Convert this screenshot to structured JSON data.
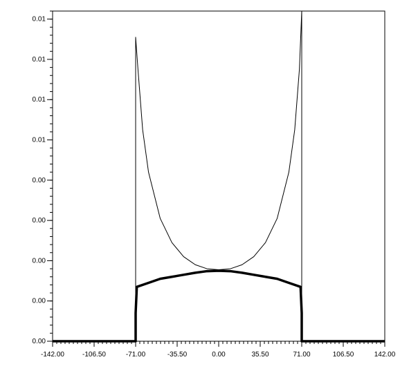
{
  "chart_data": {
    "type": "line",
    "title": "",
    "xlabel": "",
    "ylabel": "",
    "xlim": [
      -142,
      142
    ],
    "ylim": [
      0,
      0.0164
    ],
    "x_ticks": [
      -142,
      -106.5,
      -71,
      -35.5,
      0,
      35.5,
      71,
      106.5,
      142
    ],
    "x_tick_labels": [
      "-142.00",
      "-106.50",
      "-71.00",
      "-35.50",
      "0.00",
      "35.50",
      "71.00",
      "106.50",
      "142.00"
    ],
    "y_ticks": [
      0,
      0.002,
      0.004,
      0.006,
      0.008,
      0.01,
      0.012,
      0.014,
      0.016
    ],
    "y_tick_labels": [
      "0.00",
      "0.00",
      "0.00",
      "0.00",
      "0.00",
      "0.01",
      "0.01",
      "0.01",
      "0.01"
    ],
    "grid": false,
    "series": [
      {
        "style": "thin",
        "x": [
          -142,
          -71,
          -71,
          -69,
          -65,
          -60,
          -50,
          -40,
          -30,
          -20,
          -10,
          0,
          10,
          20,
          30,
          40,
          50,
          60,
          65,
          69,
          71,
          71,
          142
        ],
        "y": [
          0,
          0,
          0.0151,
          0.0135,
          0.0105,
          0.0084,
          0.0061,
          0.0049,
          0.0042,
          0.0038,
          0.0036,
          0.00355,
          0.0036,
          0.0038,
          0.0042,
          0.0049,
          0.0061,
          0.0084,
          0.0105,
          0.0135,
          0.0164,
          0,
          0
        ]
      },
      {
        "style": "thick",
        "x": [
          -142,
          -71,
          -71,
          -70,
          -60,
          -50,
          -40,
          -30,
          -20,
          -10,
          0,
          10,
          20,
          30,
          40,
          50,
          60,
          70,
          71,
          71,
          142
        ],
        "y": [
          0,
          0,
          0.0014,
          0.0027,
          0.0029,
          0.0031,
          0.0032,
          0.0033,
          0.0034,
          0.00348,
          0.0035,
          0.00348,
          0.0034,
          0.0033,
          0.0032,
          0.0031,
          0.0029,
          0.0027,
          0.0014,
          0,
          0
        ]
      }
    ]
  }
}
